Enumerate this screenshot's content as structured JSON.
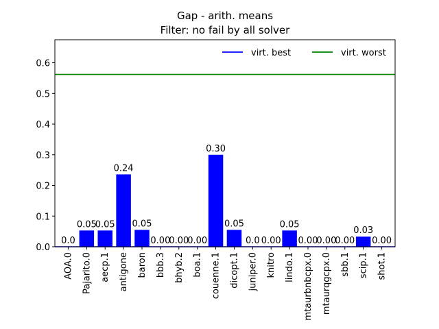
{
  "chart_data": {
    "type": "bar",
    "title": "Gap - arith. means",
    "subtitle": "Filter: no fail by all solver",
    "xlabel": "",
    "ylabel": "",
    "ylim": [
      0,
      0.675
    ],
    "yticks": [
      0.0,
      0.1,
      0.2,
      0.3,
      0.4,
      0.5,
      0.6
    ],
    "ytick_labels": [
      "0.0",
      "0.1",
      "0.2",
      "0.3",
      "0.4",
      "0.5",
      "0.6"
    ],
    "grid": false,
    "legend_placement": "top-right",
    "bar_color": "#0000ff",
    "categories": [
      "AOA.0",
      "Pajarito.0",
      "aecp.1",
      "antigone",
      "baron",
      "bbb.3",
      "bhyb.2",
      "boa.1",
      "couenne.1",
      "dicopt.1",
      "juniper.0",
      "knitro",
      "lindo.1",
      "mtaurbnbcpx.0",
      "mtaurqgcpx.0",
      "sbb.1",
      "scip.1",
      "shot.1"
    ],
    "values": [
      0.0,
      0.053,
      0.053,
      0.236,
      0.055,
      0.0,
      0.0,
      0.0,
      0.3,
      0.055,
      0.0,
      0.0,
      0.053,
      0.0,
      0.0,
      0.0,
      0.033,
      0.0
    ],
    "data_labels": [
      "0.0",
      "0.05",
      "0.05",
      "0.24",
      "0.05",
      "0.00",
      "0.00",
      "0.00",
      "0.30",
      "0.05",
      "0.0",
      "0.00",
      "0.05",
      "0.00",
      "0.00",
      "0.00",
      "0.03",
      "0.00"
    ],
    "reference_lines": [
      {
        "name": "virt. best",
        "value": 0.0,
        "color": "#0000ff"
      },
      {
        "name": "virt. worst",
        "value": 0.562,
        "color": "#008000"
      }
    ]
  }
}
